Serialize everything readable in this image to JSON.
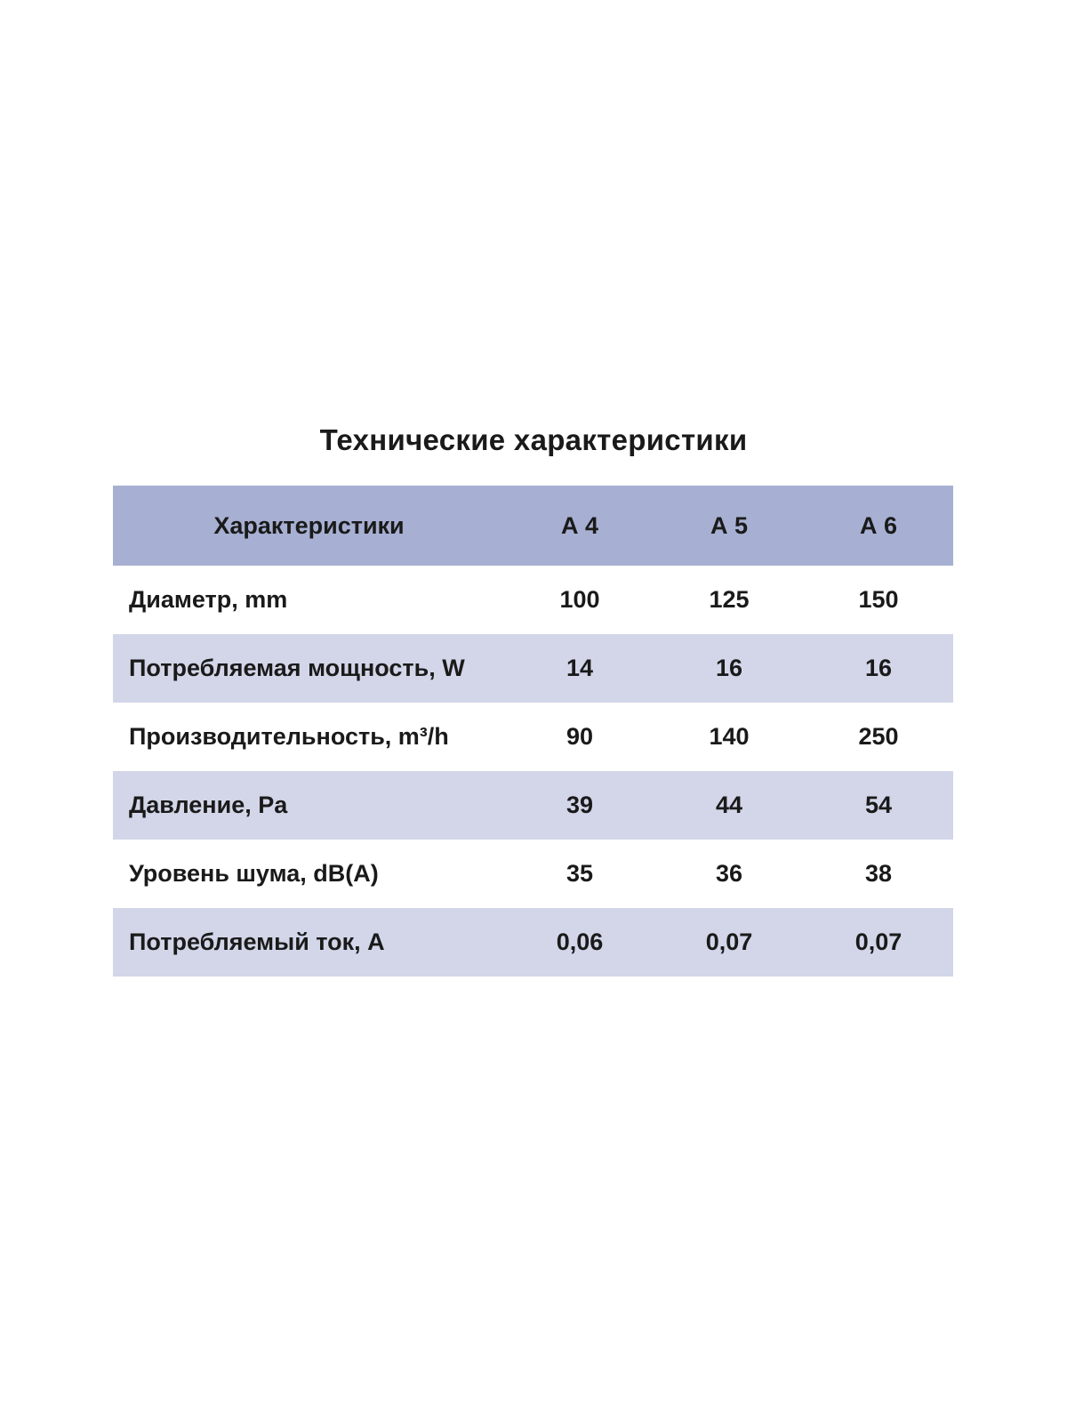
{
  "page": {
    "title": "Технические характеристики"
  },
  "table": {
    "header": {
      "label": "Характеристики",
      "columns": [
        "А 4",
        "А 5",
        "А 6"
      ]
    },
    "rows": [
      {
        "label": "Диаметр, mm",
        "values": [
          "100",
          "125",
          "150"
        ]
      },
      {
        "label": "Потребляемая мощность, W",
        "values": [
          "14",
          "16",
          "16"
        ]
      },
      {
        "label": "Производительность, m³/h",
        "values": [
          "90",
          "140",
          "250"
        ]
      },
      {
        "label": "Давление, Pa",
        "values": [
          "39",
          "44",
          "54"
        ]
      },
      {
        "label": "Уровень шума, dB(A)",
        "values": [
          "35",
          "36",
          "38"
        ]
      },
      {
        "label": "Потребляемый ток, А",
        "values": [
          "0,06",
          "0,07",
          "0,07"
        ]
      }
    ],
    "colors": {
      "header_bg": "#a7b0d2",
      "stripe_bg": "#d2d6e8",
      "row_bg": "#ffffff",
      "text": "#1a1a1a",
      "page_bg": "#ffffff"
    }
  }
}
